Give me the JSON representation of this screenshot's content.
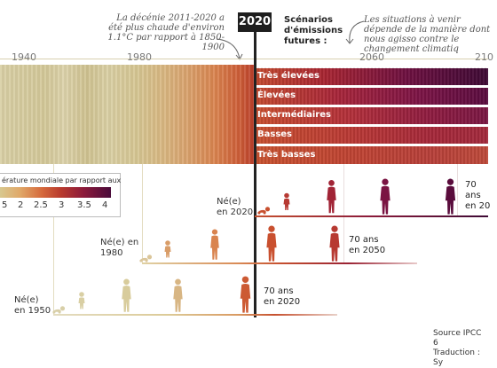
{
  "annotation_left": "La décénie 2011-2020 a été plus chaude d'environ 1.1°C par rapport à 1850-1900",
  "annotation_right": "Les situations à venir dépende de la manière dont nous agisso contre le changement climatiq",
  "current_year": "2020",
  "scenarios_title": "Scénarios d'émissions futures :",
  "axis_years": [
    "1940",
    "1980",
    "2060",
    "210"
  ],
  "scenarios": [
    "Très élevées",
    "Élevées",
    "Intermédiaires",
    "Basses",
    "Très basses"
  ],
  "legend": {
    "title": "érature mondiale par rapport aux",
    "ticks": [
      "5",
      "2",
      "2.5",
      "3",
      "3.5",
      "4"
    ]
  },
  "cohorts": [
    {
      "born": "Né(e) en 2020",
      "age70": "70 ans en 20"
    },
    {
      "born": "Né(e) en 1980",
      "age70": "70 ans en 2050"
    },
    {
      "born": "Né(e) en 1950",
      "age70": "70 ans en 2020"
    }
  ],
  "source": {
    "line1": "Source IPCC 6",
    "line2": "Traduction : Sy"
  },
  "colors": {
    "past_stripes": "#d9cfa6",
    "warm_1": "#c8502f",
    "warm_2": "#9b1f2e",
    "warm_3": "#5a0c3c",
    "divider": "#222222"
  }
}
